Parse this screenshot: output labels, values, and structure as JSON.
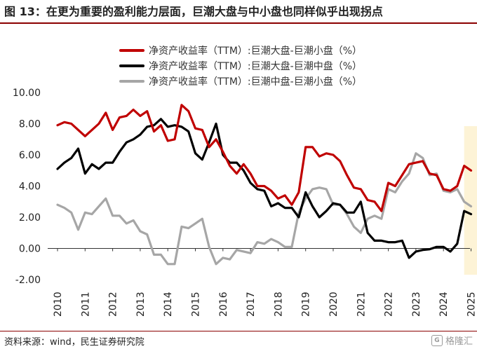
{
  "header": {
    "title": "图 13：在更为重要的盈利能力层面，巨潮大盘与中小盘也同样似乎出现拐点"
  },
  "footer": {
    "source": "资料来源：wind，民生证券研究院",
    "watermark": "格隆汇"
  },
  "colors": {
    "red": "#c00000",
    "black": "#000000",
    "gray": "#a6a6a6",
    "highlight": "#fdf3d6",
    "rule": "#8b0000"
  },
  "chart_data": {
    "type": "line",
    "x_tick_labels": [
      "2010",
      "2011",
      "2012",
      "2013",
      "2014",
      "2015",
      "2016",
      "2017",
      "2018",
      "2019",
      "2020",
      "2021",
      "2022",
      "2023",
      "2024",
      "2025"
    ],
    "y_tick_labels": [
      "10.00",
      "8.00",
      "6.00",
      "4.00",
      "2.00",
      "0.00",
      "-2.00"
    ],
    "ylim": [
      -2,
      10
    ],
    "xlim": [
      2010,
      2025.3
    ],
    "highlight_region": [
      2024.75,
      2025.25
    ],
    "grid": false,
    "legend_position": "top-center",
    "series": [
      {
        "name": "净资产收益率（TTM）:巨潮大盘-巨潮小盘（%）",
        "color": "#c00000",
        "x": [
          2010.0,
          2010.25,
          2010.5,
          2010.75,
          2011.0,
          2011.25,
          2011.5,
          2011.75,
          2012.0,
          2012.25,
          2012.5,
          2012.75,
          2013.0,
          2013.25,
          2013.5,
          2013.75,
          2014.0,
          2014.25,
          2014.5,
          2014.75,
          2015.0,
          2015.25,
          2015.5,
          2015.75,
          2016.0,
          2016.25,
          2016.5,
          2016.75,
          2017.0,
          2017.25,
          2017.5,
          2017.75,
          2018.0,
          2018.25,
          2018.5,
          2018.75,
          2019.0,
          2019.25,
          2019.5,
          2019.75,
          2020.0,
          2020.25,
          2020.5,
          2020.75,
          2021.0,
          2021.25,
          2021.5,
          2021.75,
          2022.0,
          2022.25,
          2022.5,
          2022.75,
          2023.0,
          2023.25,
          2023.5,
          2023.75,
          2024.0,
          2024.25,
          2024.5,
          2024.75,
          2025.0
        ],
        "y": [
          7.9,
          8.1,
          8.0,
          7.6,
          7.2,
          7.6,
          8.0,
          8.7,
          7.6,
          8.4,
          8.5,
          8.9,
          8.5,
          8.8,
          7.5,
          7.9,
          6.9,
          7.0,
          9.2,
          8.8,
          7.7,
          7.6,
          6.5,
          7.0,
          6.2,
          5.3,
          4.8,
          5.4,
          4.8,
          4.0,
          4.0,
          3.7,
          3.2,
          3.4,
          2.8,
          3.6,
          6.5,
          6.5,
          5.9,
          6.1,
          6.0,
          5.6,
          4.7,
          3.9,
          3.8,
          3.1,
          3.0,
          2.4,
          4.2,
          4.0,
          4.7,
          5.4,
          5.5,
          5.6,
          4.8,
          4.7,
          3.8,
          3.7,
          4.0,
          5.3,
          5.0
        ]
      },
      {
        "name": "净资产收益率（TTM）:巨潮大盘-巨潮中盘（%）",
        "color": "#000000",
        "x": [
          2010.0,
          2010.25,
          2010.5,
          2010.75,
          2011.0,
          2011.25,
          2011.5,
          2011.75,
          2012.0,
          2012.25,
          2012.5,
          2012.75,
          2013.0,
          2013.25,
          2013.5,
          2013.75,
          2014.0,
          2014.25,
          2014.5,
          2014.75,
          2015.0,
          2015.25,
          2015.5,
          2015.75,
          2016.0,
          2016.25,
          2016.5,
          2016.75,
          2017.0,
          2017.25,
          2017.5,
          2017.75,
          2018.0,
          2018.25,
          2018.5,
          2018.75,
          2019.0,
          2019.25,
          2019.5,
          2019.75,
          2020.0,
          2020.25,
          2020.5,
          2020.75,
          2021.0,
          2021.25,
          2021.5,
          2021.75,
          2022.0,
          2022.25,
          2022.5,
          2022.75,
          2023.0,
          2023.25,
          2023.5,
          2023.75,
          2024.0,
          2024.25,
          2024.5,
          2024.75,
          2025.0
        ],
        "y": [
          5.1,
          5.5,
          5.8,
          6.4,
          4.8,
          5.4,
          5.1,
          5.5,
          5.5,
          6.2,
          6.8,
          7.0,
          7.3,
          7.8,
          7.9,
          8.3,
          7.8,
          7.9,
          7.8,
          7.5,
          6.1,
          5.7,
          6.8,
          8.0,
          6.0,
          5.5,
          5.5,
          5.0,
          4.2,
          3.8,
          3.7,
          2.7,
          2.9,
          2.6,
          2.6,
          2.0,
          3.6,
          2.7,
          2.0,
          2.4,
          2.9,
          2.8,
          2.3,
          2.3,
          3.0,
          1.0,
          0.5,
          0.5,
          0.4,
          0.4,
          0.5,
          -0.6,
          -0.2,
          -0.1,
          -0.05,
          0.1,
          0.1,
          -0.2,
          0.3,
          2.4,
          2.2
        ]
      },
      {
        "name": "净资产收益率（TTM）:巨潮中盘-巨潮小盘（%）",
        "color": "#a6a6a6",
        "x": [
          2010.0,
          2010.25,
          2010.5,
          2010.75,
          2011.0,
          2011.25,
          2011.5,
          2011.75,
          2012.0,
          2012.25,
          2012.5,
          2012.75,
          2013.0,
          2013.25,
          2013.5,
          2013.75,
          2014.0,
          2014.25,
          2014.5,
          2014.75,
          2015.0,
          2015.25,
          2015.5,
          2015.75,
          2016.0,
          2016.25,
          2016.5,
          2016.75,
          2017.0,
          2017.25,
          2017.5,
          2017.75,
          2018.0,
          2018.25,
          2018.5,
          2018.75,
          2019.0,
          2019.25,
          2019.5,
          2019.75,
          2020.0,
          2020.25,
          2020.5,
          2020.75,
          2021.0,
          2021.25,
          2021.5,
          2021.75,
          2022.0,
          2022.25,
          2022.5,
          2022.75,
          2023.0,
          2023.25,
          2023.5,
          2023.75,
          2024.0,
          2024.25,
          2024.5,
          2024.75,
          2025.0
        ],
        "y": [
          2.8,
          2.6,
          2.3,
          1.2,
          2.3,
          2.2,
          2.7,
          3.2,
          2.1,
          2.1,
          1.6,
          1.8,
          1.1,
          0.9,
          -0.4,
          -0.4,
          -1.0,
          -1.0,
          1.4,
          1.3,
          1.6,
          1.9,
          0.1,
          -1.0,
          -0.6,
          -0.7,
          -0.1,
          -0.2,
          -0.3,
          0.4,
          0.3,
          0.6,
          0.4,
          0.1,
          0.1,
          2.3,
          3.2,
          3.8,
          3.9,
          3.8,
          2.8,
          2.8,
          2.2,
          1.4,
          1.0,
          1.9,
          2.1,
          1.9,
          3.8,
          3.6,
          4.3,
          4.8,
          6.1,
          5.8,
          4.7,
          4.8,
          3.7,
          3.6,
          3.8,
          3.0,
          2.7
        ]
      }
    ]
  }
}
